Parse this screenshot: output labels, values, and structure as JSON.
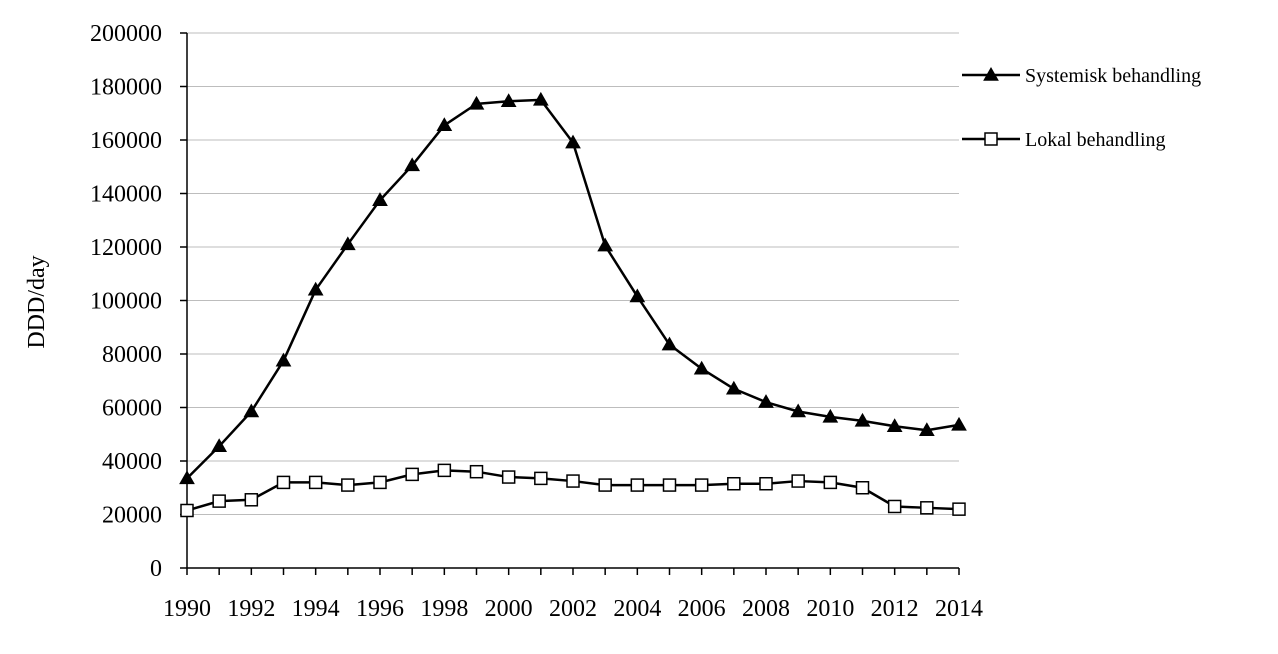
{
  "chart_data": {
    "type": "line",
    "title": "",
    "xlabel": "",
    "ylabel": "DDD/day",
    "ylim": [
      0,
      200000
    ],
    "yticks": [
      0,
      20000,
      40000,
      60000,
      80000,
      100000,
      120000,
      140000,
      160000,
      180000,
      200000
    ],
    "xlim": [
      1990,
      2014
    ],
    "xtick_labels": [
      "1990",
      "1992",
      "1994",
      "1996",
      "1998",
      "2000",
      "2002",
      "2004",
      "2006",
      "2008",
      "2010",
      "2012",
      "2014"
    ],
    "grid": "horizontal",
    "legend_position": "right",
    "x": [
      1990,
      1991,
      1992,
      1993,
      1994,
      1995,
      1996,
      1997,
      1998,
      1999,
      2000,
      2001,
      2002,
      2003,
      2004,
      2005,
      2006,
      2007,
      2008,
      2009,
      2010,
      2011,
      2012,
      2013,
      2014
    ],
    "series": [
      {
        "name": "Systemisk behandling",
        "marker": "filled-triangle",
        "color": "#000000",
        "values": [
          33500,
          45500,
          58500,
          77500,
          104000,
          121000,
          137500,
          150500,
          165500,
          173500,
          174500,
          175000,
          159000,
          120500,
          101500,
          83500,
          74500,
          67000,
          62000,
          58500,
          56500,
          55000,
          53000,
          51500,
          53500
        ]
      },
      {
        "name": "Lokal behandling",
        "marker": "open-square",
        "color": "#000000",
        "values": [
          21500,
          25000,
          25500,
          32000,
          32000,
          31000,
          32000,
          35000,
          36500,
          36000,
          34000,
          33500,
          32500,
          31000,
          31000,
          31000,
          31000,
          31500,
          31500,
          32500,
          32000,
          30000,
          23000,
          22500,
          22000
        ]
      }
    ]
  }
}
